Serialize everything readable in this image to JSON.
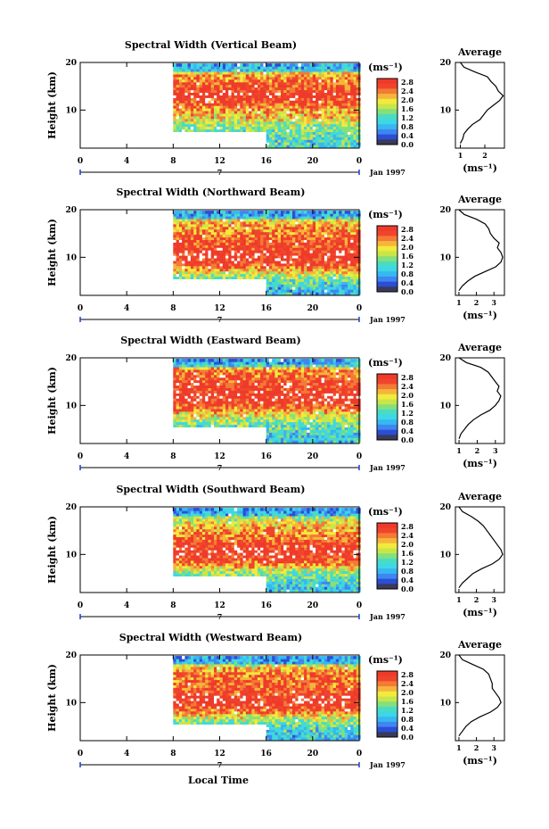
{
  "figure": {
    "xlabel_common": "Local Time",
    "date_label": "Jan 1997",
    "day_label": "7",
    "unit_label": "(ms⁻¹)"
  },
  "colormap": [
    "#3a3a5a",
    "#2a4fd6",
    "#3f86f0",
    "#36b8f0",
    "#3fd6e6",
    "#49dcc4",
    "#86e07a",
    "#c8e64a",
    "#f2ea3c",
    "#f5b53a",
    "#f47a36",
    "#f0452c",
    "#ee3a2a"
  ],
  "chart_data": [
    {
      "type": "heatmap",
      "title": "Spectral Width (Vertical Beam)",
      "xlabel": "",
      "ylabel": "Height (km)",
      "xticks": [
        "0",
        "4",
        "8",
        "12",
        "16",
        "20",
        "0"
      ],
      "xlim": [
        0,
        24
      ],
      "ylim": [
        2,
        20
      ],
      "yticks": [
        "20",
        "10"
      ],
      "colorbar": {
        "label": "(ms⁻¹)",
        "ticks": [
          "2.8",
          "2.4",
          "2.0",
          "1.6",
          "1.2",
          "0.8",
          "0.4",
          "0.0"
        ],
        "range": [
          0,
          2.8
        ]
      },
      "average": {
        "title": "Average",
        "xlabel": "(ms⁻¹)",
        "xticks": [
          "1",
          "2"
        ],
        "xlim": [
          0.8,
          2.8
        ],
        "profile_height": [
          3,
          4,
          5,
          6,
          7,
          8,
          9,
          10,
          11,
          12,
          13,
          14,
          15,
          16,
          17,
          18,
          19,
          20
        ],
        "profile_value": [
          1.0,
          1.1,
          1.15,
          1.3,
          1.5,
          1.8,
          1.95,
          2.1,
          2.35,
          2.6,
          2.75,
          2.55,
          2.45,
          2.25,
          2.1,
          1.6,
          1.15,
          1.0
        ]
      }
    },
    {
      "type": "heatmap",
      "title": "Spectral Width (Northward Beam)",
      "xlabel": "",
      "ylabel": "Height (km)",
      "xticks": [
        "0",
        "4",
        "8",
        "12",
        "16",
        "20",
        "0"
      ],
      "xlim": [
        0,
        24
      ],
      "ylim": [
        2,
        20
      ],
      "yticks": [
        "20",
        "10"
      ],
      "colorbar": {
        "label": "(ms⁻¹)",
        "ticks": [
          "2.8",
          "2.4",
          "2.0",
          "1.6",
          "1.2",
          "0.8",
          "0.4",
          "0.0"
        ],
        "range": [
          0,
          2.8
        ]
      },
      "average": {
        "title": "Average",
        "xlabel": "(ms⁻¹)",
        "xticks": [
          "1",
          "2",
          "3"
        ],
        "xlim": [
          0.8,
          3.6
        ],
        "profile_height": [
          3,
          4,
          5,
          6,
          7,
          8,
          9,
          10,
          11,
          12,
          13,
          14,
          15,
          16,
          17,
          18,
          19,
          20
        ],
        "profile_value": [
          1.0,
          1.2,
          1.5,
          1.9,
          2.5,
          3.1,
          3.4,
          3.5,
          3.4,
          3.2,
          3.3,
          3.0,
          2.8,
          2.7,
          2.5,
          2.0,
          1.3,
          1.0
        ]
      }
    },
    {
      "type": "heatmap",
      "title": "Spectral Width (Eastward Beam)",
      "xlabel": "",
      "ylabel": "Height (km)",
      "xticks": [
        "0",
        "4",
        "8",
        "12",
        "16",
        "20",
        "0"
      ],
      "xlim": [
        0,
        24
      ],
      "ylim": [
        2,
        20
      ],
      "yticks": [
        "20",
        "10"
      ],
      "colorbar": {
        "label": "(ms⁻¹)",
        "ticks": [
          "2.8",
          "2.4",
          "2.0",
          "1.6",
          "1.2",
          "0.8",
          "0.4",
          "0.0"
        ],
        "range": [
          0,
          2.8
        ]
      },
      "average": {
        "title": "Average",
        "xlabel": "(ms⁻¹)",
        "xticks": [
          "1",
          "2",
          "3"
        ],
        "xlim": [
          0.8,
          3.5
        ],
        "profile_height": [
          3,
          4,
          5,
          6,
          7,
          8,
          9,
          10,
          11,
          12,
          13,
          14,
          15,
          16,
          17,
          18,
          19,
          20
        ],
        "profile_value": [
          1.0,
          1.1,
          1.3,
          1.5,
          1.8,
          2.2,
          2.7,
          3.0,
          3.2,
          3.3,
          3.1,
          3.2,
          3.0,
          2.8,
          2.6,
          2.2,
          1.4,
          1.0
        ]
      }
    },
    {
      "type": "heatmap",
      "title": "Spectral Width (Southward Beam)",
      "xlabel": "",
      "ylabel": "Height (km)",
      "xticks": [
        "0",
        "4",
        "8",
        "12",
        "16",
        "20",
        "0"
      ],
      "xlim": [
        0,
        24
      ],
      "ylim": [
        2,
        20
      ],
      "yticks": [
        "20",
        "10"
      ],
      "colorbar": {
        "label": "(ms⁻¹)",
        "ticks": [
          "2.8",
          "2.4",
          "2.0",
          "1.6",
          "1.2",
          "0.8",
          "0.4",
          "0.0"
        ],
        "range": [
          0,
          2.8
        ]
      },
      "average": {
        "title": "Average",
        "xlabel": "(ms⁻¹)",
        "xticks": [
          "1",
          "2",
          "3"
        ],
        "xlim": [
          0.8,
          3.6
        ],
        "profile_height": [
          3,
          4,
          5,
          6,
          7,
          8,
          9,
          10,
          11,
          12,
          13,
          14,
          15,
          16,
          17,
          18,
          19,
          20
        ],
        "profile_value": [
          1.0,
          1.2,
          1.5,
          1.8,
          2.3,
          2.9,
          3.3,
          3.5,
          3.4,
          3.2,
          3.0,
          2.8,
          2.6,
          2.4,
          2.1,
          1.7,
          1.2,
          1.0
        ]
      }
    },
    {
      "type": "heatmap",
      "title": "Spectral Width (Westward Beam)",
      "xlabel": "Local Time",
      "ylabel": "Height (km)",
      "xticks": [
        "0",
        "4",
        "8",
        "12",
        "16",
        "20",
        "0"
      ],
      "xlim": [
        0,
        24
      ],
      "ylim": [
        2,
        20
      ],
      "yticks": [
        "20",
        "10"
      ],
      "colorbar": {
        "label": "(ms⁻¹)",
        "ticks": [
          "2.8",
          "2.4",
          "2.0",
          "1.6",
          "1.2",
          "0.8",
          "0.4",
          "0.0"
        ],
        "range": [
          0,
          2.8
        ]
      },
      "average": {
        "title": "Average",
        "xlabel": "(ms⁻¹)",
        "xticks": [
          "1",
          "2",
          "3"
        ],
        "xlim": [
          0.8,
          3.6
        ],
        "profile_height": [
          3,
          4,
          5,
          6,
          7,
          8,
          9,
          10,
          11,
          12,
          13,
          14,
          15,
          16,
          17,
          18,
          19,
          20
        ],
        "profile_value": [
          1.0,
          1.2,
          1.4,
          1.7,
          2.2,
          2.8,
          3.2,
          3.4,
          3.3,
          3.1,
          2.9,
          2.9,
          2.8,
          2.7,
          2.4,
          1.8,
          1.2,
          1.0
        ]
      }
    }
  ]
}
